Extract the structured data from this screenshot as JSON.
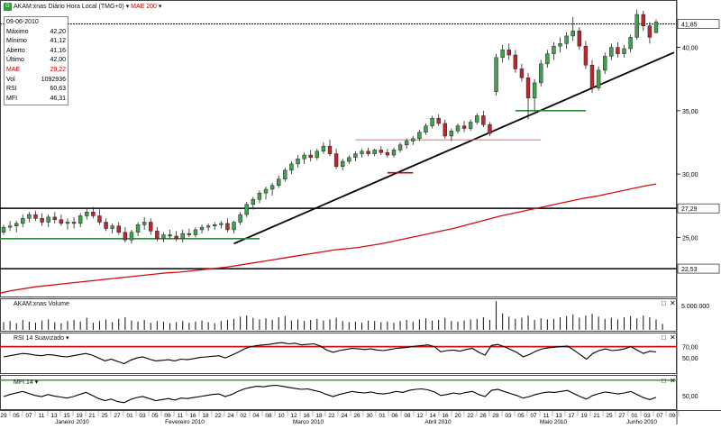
{
  "header": {
    "symbol_label": "AKAM:xnas Diário Hora Local (TMG+0)",
    "overlay_label": "MAE 200"
  },
  "info_box": {
    "date": "09-06-2010",
    "rows": [
      {
        "label": "Máximo",
        "value": "42,20"
      },
      {
        "label": "Mínimo",
        "value": "41,12"
      },
      {
        "label": "Aberto",
        "value": "41,16"
      },
      {
        "label": "Último",
        "value": "42,00"
      },
      {
        "label": "MAE",
        "value": "29,22"
      },
      {
        "label": "Vol",
        "value": "1092936"
      },
      {
        "label": "RSI",
        "value": "60,63"
      },
      {
        "label": "MFI",
        "value": "46,31"
      }
    ]
  },
  "panels": {
    "volume_label": "AKAM:xnas Volume",
    "rsi_label": "RSI 14 Suavizado",
    "mfi_label": "MFI 14"
  },
  "colors": {
    "up": "#3fa34d",
    "down": "#c0252b",
    "ma": "#d01010",
    "rsi_line": "#d01010",
    "mfi_line": "#2e8b3d"
  },
  "chart_data": {
    "type": "candlestick",
    "price_ticks": [
      "40,00",
      "35,00",
      "30,00",
      "25,00"
    ],
    "price_ylim": [
      20.4,
      43.6
    ],
    "horizontal_levels": [
      {
        "label": "41,85",
        "value": 41.85
      },
      {
        "label": "27,29",
        "value": 27.29
      },
      {
        "label": "22,53",
        "value": 22.53
      }
    ],
    "volume_tick": "5.000.000",
    "rsi_ticks": [
      "70,00",
      "50,00"
    ],
    "rsi_level": 70,
    "mfi_ticks": [
      "50,00"
    ],
    "mfi_level": 80,
    "x_day_labels": [
      "29",
      "05",
      "07",
      "11",
      "13",
      "15",
      "19",
      "21",
      "25",
      "27",
      "01",
      "03",
      "05",
      "09",
      "11",
      "16",
      "18",
      "22",
      "24",
      "02",
      "04",
      "08",
      "10",
      "12",
      "16",
      "18",
      "22",
      "24",
      "26",
      "30",
      "01",
      "06",
      "08",
      "12",
      "14",
      "16",
      "20",
      "22",
      "26",
      "28",
      "03",
      "05",
      "07",
      "11",
      "13",
      "17",
      "19",
      "21",
      "25",
      "27",
      "01",
      "03",
      "07",
      "09"
    ],
    "x_month_labels": [
      "Janeiro 2010",
      "Fevereiro 2010",
      "Março 2010",
      "Abril 2010",
      "Maio 2010",
      "Junho 2010"
    ],
    "candles": [
      {
        "o": 25.4,
        "h": 26.0,
        "l": 25.2,
        "c": 25.8
      },
      {
        "o": 25.8,
        "h": 26.3,
        "l": 25.5,
        "c": 25.9
      },
      {
        "o": 25.9,
        "h": 26.3,
        "l": 25.4,
        "c": 26.1
      },
      {
        "o": 26.1,
        "h": 26.8,
        "l": 25.8,
        "c": 26.5
      },
      {
        "o": 26.5,
        "h": 27.0,
        "l": 26.2,
        "c": 26.8
      },
      {
        "o": 26.8,
        "h": 27.1,
        "l": 26.3,
        "c": 26.5
      },
      {
        "o": 26.5,
        "h": 26.9,
        "l": 25.9,
        "c": 26.2
      },
      {
        "o": 26.2,
        "h": 26.8,
        "l": 25.8,
        "c": 26.6
      },
      {
        "o": 26.6,
        "h": 27.0,
        "l": 26.1,
        "c": 26.4
      },
      {
        "o": 26.4,
        "h": 26.8,
        "l": 25.9,
        "c": 26.1
      },
      {
        "o": 26.1,
        "h": 26.5,
        "l": 25.6,
        "c": 26.2
      },
      {
        "o": 26.2,
        "h": 26.6,
        "l": 25.7,
        "c": 26.1
      },
      {
        "o": 26.1,
        "h": 26.9,
        "l": 25.8,
        "c": 26.7
      },
      {
        "o": 26.7,
        "h": 27.3,
        "l": 26.4,
        "c": 27.0
      },
      {
        "o": 27.0,
        "h": 27.4,
        "l": 26.5,
        "c": 26.7
      },
      {
        "o": 26.7,
        "h": 27.2,
        "l": 26.0,
        "c": 26.2
      },
      {
        "o": 26.2,
        "h": 26.5,
        "l": 25.5,
        "c": 25.7
      },
      {
        "o": 25.7,
        "h": 26.1,
        "l": 25.3,
        "c": 25.9
      },
      {
        "o": 25.9,
        "h": 26.2,
        "l": 25.2,
        "c": 25.4
      },
      {
        "o": 25.4,
        "h": 25.8,
        "l": 24.6,
        "c": 24.8
      },
      {
        "o": 24.8,
        "h": 25.6,
        "l": 24.5,
        "c": 25.4
      },
      {
        "o": 25.4,
        "h": 26.2,
        "l": 25.1,
        "c": 26.0
      },
      {
        "o": 26.0,
        "h": 26.6,
        "l": 25.6,
        "c": 26.2
      },
      {
        "o": 26.2,
        "h": 26.5,
        "l": 25.2,
        "c": 25.5
      },
      {
        "o": 25.5,
        "h": 25.8,
        "l": 24.7,
        "c": 24.9
      },
      {
        "o": 24.9,
        "h": 25.4,
        "l": 24.6,
        "c": 25.2
      },
      {
        "o": 25.2,
        "h": 25.6,
        "l": 24.9,
        "c": 25.1
      },
      {
        "o": 25.1,
        "h": 25.5,
        "l": 24.7,
        "c": 24.9
      },
      {
        "o": 24.9,
        "h": 25.6,
        "l": 24.6,
        "c": 25.3
      },
      {
        "o": 25.3,
        "h": 25.7,
        "l": 25.0,
        "c": 25.2
      },
      {
        "o": 25.2,
        "h": 25.8,
        "l": 25.0,
        "c": 25.6
      },
      {
        "o": 25.6,
        "h": 26.0,
        "l": 25.3,
        "c": 25.8
      },
      {
        "o": 25.8,
        "h": 26.1,
        "l": 25.5,
        "c": 25.9
      },
      {
        "o": 25.9,
        "h": 26.2,
        "l": 25.6,
        "c": 26.0
      },
      {
        "o": 26.0,
        "h": 26.3,
        "l": 25.7,
        "c": 26.1
      },
      {
        "o": 26.1,
        "h": 26.5,
        "l": 25.4,
        "c": 25.6
      },
      {
        "o": 25.6,
        "h": 26.3,
        "l": 25.3,
        "c": 26.2
      },
      {
        "o": 26.2,
        "h": 27.0,
        "l": 26.0,
        "c": 26.8
      },
      {
        "o": 26.8,
        "h": 27.8,
        "l": 26.6,
        "c": 27.6
      },
      {
        "o": 27.6,
        "h": 28.2,
        "l": 27.2,
        "c": 28.0
      },
      {
        "o": 28.0,
        "h": 28.7,
        "l": 27.7,
        "c": 28.5
      },
      {
        "o": 28.5,
        "h": 29.0,
        "l": 28.0,
        "c": 28.8
      },
      {
        "o": 28.8,
        "h": 29.3,
        "l": 28.3,
        "c": 29.1
      },
      {
        "o": 29.1,
        "h": 29.9,
        "l": 28.9,
        "c": 29.6
      },
      {
        "o": 29.6,
        "h": 30.5,
        "l": 29.4,
        "c": 30.3
      },
      {
        "o": 30.3,
        "h": 31.0,
        "l": 30.0,
        "c": 30.8
      },
      {
        "o": 30.8,
        "h": 31.5,
        "l": 30.5,
        "c": 31.2
      },
      {
        "o": 31.2,
        "h": 31.7,
        "l": 30.8,
        "c": 31.5
      },
      {
        "o": 31.5,
        "h": 31.9,
        "l": 31.0,
        "c": 31.3
      },
      {
        "o": 31.3,
        "h": 32.0,
        "l": 31.1,
        "c": 31.8
      },
      {
        "o": 31.8,
        "h": 32.5,
        "l": 31.6,
        "c": 32.2
      },
      {
        "o": 32.2,
        "h": 32.7,
        "l": 31.4,
        "c": 31.6
      },
      {
        "o": 31.6,
        "h": 32.0,
        "l": 30.4,
        "c": 30.6
      },
      {
        "o": 30.6,
        "h": 31.2,
        "l": 30.3,
        "c": 31.0
      },
      {
        "o": 31.0,
        "h": 31.5,
        "l": 30.8,
        "c": 31.3
      },
      {
        "o": 31.3,
        "h": 31.8,
        "l": 31.0,
        "c": 31.6
      },
      {
        "o": 31.6,
        "h": 32.0,
        "l": 31.3,
        "c": 31.8
      },
      {
        "o": 31.8,
        "h": 32.1,
        "l": 31.4,
        "c": 31.6
      },
      {
        "o": 31.6,
        "h": 32.0,
        "l": 31.4,
        "c": 31.9
      },
      {
        "o": 31.9,
        "h": 32.2,
        "l": 31.5,
        "c": 31.7
      },
      {
        "o": 31.7,
        "h": 32.0,
        "l": 31.3,
        "c": 31.5
      },
      {
        "o": 31.5,
        "h": 32.1,
        "l": 31.3,
        "c": 31.9
      },
      {
        "o": 31.9,
        "h": 32.5,
        "l": 31.7,
        "c": 32.3
      },
      {
        "o": 32.3,
        "h": 32.8,
        "l": 32.0,
        "c": 32.6
      },
      {
        "o": 32.6,
        "h": 33.0,
        "l": 32.3,
        "c": 32.8
      },
      {
        "o": 32.8,
        "h": 33.5,
        "l": 32.6,
        "c": 33.3
      },
      {
        "o": 33.3,
        "h": 34.0,
        "l": 33.1,
        "c": 33.8
      },
      {
        "o": 33.8,
        "h": 34.6,
        "l": 33.6,
        "c": 34.4
      },
      {
        "o": 34.4,
        "h": 34.7,
        "l": 33.8,
        "c": 34.0
      },
      {
        "o": 34.0,
        "h": 34.3,
        "l": 32.8,
        "c": 33.0
      },
      {
        "o": 33.0,
        "h": 33.6,
        "l": 32.6,
        "c": 33.4
      },
      {
        "o": 33.4,
        "h": 34.0,
        "l": 33.2,
        "c": 33.8
      },
      {
        "o": 33.8,
        "h": 34.2,
        "l": 33.3,
        "c": 33.6
      },
      {
        "o": 33.6,
        "h": 34.3,
        "l": 33.4,
        "c": 34.1
      },
      {
        "o": 34.1,
        "h": 34.8,
        "l": 33.9,
        "c": 34.6
      },
      {
        "o": 34.6,
        "h": 35.0,
        "l": 33.7,
        "c": 33.9
      },
      {
        "o": 33.9,
        "h": 34.1,
        "l": 33.0,
        "c": 33.2
      },
      {
        "o": 36.5,
        "h": 39.5,
        "l": 36.2,
        "c": 39.2
      },
      {
        "o": 39.2,
        "h": 40.2,
        "l": 38.8,
        "c": 39.8
      },
      {
        "o": 39.8,
        "h": 40.3,
        "l": 39.0,
        "c": 39.4
      },
      {
        "o": 39.4,
        "h": 39.8,
        "l": 38.0,
        "c": 38.3
      },
      {
        "o": 38.3,
        "h": 38.7,
        "l": 37.3,
        "c": 37.6
      },
      {
        "o": 37.6,
        "h": 38.0,
        "l": 34.3,
        "c": 36.0
      },
      {
        "o": 36.0,
        "h": 37.5,
        "l": 35.0,
        "c": 37.2
      },
      {
        "o": 37.2,
        "h": 39.0,
        "l": 36.9,
        "c": 38.7
      },
      {
        "o": 38.7,
        "h": 39.8,
        "l": 38.4,
        "c": 39.5
      },
      {
        "o": 39.5,
        "h": 40.4,
        "l": 39.0,
        "c": 40.1
      },
      {
        "o": 40.1,
        "h": 40.8,
        "l": 39.6,
        "c": 40.3
      },
      {
        "o": 40.3,
        "h": 41.2,
        "l": 39.9,
        "c": 40.9
      },
      {
        "o": 40.9,
        "h": 42.4,
        "l": 40.5,
        "c": 41.3
      },
      {
        "o": 41.3,
        "h": 41.6,
        "l": 39.8,
        "c": 40.1
      },
      {
        "o": 40.1,
        "h": 40.5,
        "l": 38.3,
        "c": 38.6
      },
      {
        "o": 38.6,
        "h": 39.0,
        "l": 36.4,
        "c": 36.8
      },
      {
        "o": 36.8,
        "h": 38.5,
        "l": 36.6,
        "c": 38.2
      },
      {
        "o": 38.2,
        "h": 39.6,
        "l": 37.9,
        "c": 39.3
      },
      {
        "o": 39.3,
        "h": 40.3,
        "l": 39.0,
        "c": 40.0
      },
      {
        "o": 40.0,
        "h": 40.4,
        "l": 39.2,
        "c": 39.5
      },
      {
        "o": 39.5,
        "h": 40.2,
        "l": 39.2,
        "c": 39.9
      },
      {
        "o": 39.9,
        "h": 41.0,
        "l": 39.6,
        "c": 40.8
      },
      {
        "o": 40.8,
        "h": 43.0,
        "l": 40.6,
        "c": 42.6
      },
      {
        "o": 42.6,
        "h": 42.9,
        "l": 41.3,
        "c": 41.7
      },
      {
        "o": 41.7,
        "h": 42.0,
        "l": 40.3,
        "c": 40.8
      },
      {
        "o": 41.16,
        "h": 42.2,
        "l": 41.12,
        "c": 42.0
      }
    ],
    "ma200": [
      20.6,
      20.8,
      20.95,
      21.1,
      21.2,
      21.3,
      21.4,
      21.5,
      21.6,
      21.7,
      21.8,
      21.9,
      22.0,
      22.1,
      22.2,
      22.25,
      22.35,
      22.45,
      22.55,
      22.65,
      22.8,
      22.95,
      23.1,
      23.25,
      23.4,
      23.55,
      23.7,
      23.85,
      24.0,
      24.1,
      24.2,
      24.35,
      24.5,
      24.7,
      24.9,
      25.1,
      25.3,
      25.5,
      25.7,
      25.95,
      26.2,
      26.45,
      26.7,
      26.9,
      27.1,
      27.3,
      27.5,
      27.7,
      27.9,
      28.1,
      28.25,
      28.45,
      28.65,
      28.85,
      29.05,
      29.22
    ],
    "volume": [
      1.4,
      1.6,
      1.2,
      1.8,
      1.5,
      1.3,
      1.7,
      1.9,
      1.4,
      1.2,
      1.6,
      1.8,
      1.5,
      2.2,
      1.3,
      1.6,
      1.9,
      1.4,
      2.0,
      2.3,
      1.7,
      1.5,
      1.8,
      1.3,
      1.6,
      1.5,
      1.2,
      1.4,
      1.6,
      1.3,
      1.5,
      1.7,
      1.4,
      1.2,
      1.6,
      1.8,
      2.0,
      2.4,
      2.6,
      2.2,
      1.9,
      2.1,
      1.8,
      2.3,
      2.5,
      1.7,
      1.9,
      1.6,
      1.8,
      2.0,
      1.7,
      1.9,
      2.2,
      1.6,
      1.4,
      1.5,
      1.3,
      1.7,
      1.6,
      1.4,
      1.5,
      1.3,
      1.6,
      1.8,
      1.5,
      1.9,
      2.1,
      1.7,
      1.8,
      2.2,
      1.6,
      1.5,
      1.7,
      1.9,
      2.0,
      2.3,
      1.8,
      5.2,
      3.0,
      2.4,
      2.0,
      2.2,
      2.6,
      1.8,
      2.1,
      1.9,
      2.0,
      2.3,
      2.5,
      2.8,
      2.2,
      2.6,
      2.9,
      2.4,
      2.0,
      2.2,
      1.9,
      2.3,
      2.5,
      2.1,
      2.6,
      2.3,
      1.9,
      1.1
    ],
    "rsi": [
      52,
      54,
      56,
      58,
      57,
      55,
      54,
      56,
      55,
      53,
      52,
      54,
      56,
      58,
      55,
      50,
      45,
      48,
      44,
      40,
      46,
      50,
      52,
      48,
      45,
      46,
      47,
      45,
      48,
      47,
      49,
      51,
      52,
      53,
      54,
      50,
      55,
      60,
      66,
      70,
      72,
      73,
      74,
      76,
      77,
      75,
      76,
      73,
      74,
      75,
      71,
      64,
      60,
      63,
      65,
      67,
      66,
      65,
      66,
      64,
      63,
      65,
      67,
      68,
      69,
      71,
      72,
      73,
      70,
      61,
      63,
      64,
      62,
      65,
      67,
      60,
      55,
      72,
      74,
      70,
      65,
      60,
      52,
      56,
      62,
      66,
      68,
      69,
      70,
      71,
      64,
      56,
      48,
      58,
      63,
      66,
      63,
      64,
      66,
      70,
      64,
      58,
      62,
      60.6
    ],
    "mfi": [
      48,
      52,
      55,
      58,
      54,
      50,
      48,
      52,
      49,
      47,
      45,
      48,
      52,
      56,
      50,
      44,
      40,
      43,
      38,
      36,
      42,
      46,
      48,
      44,
      40,
      42,
      44,
      41,
      45,
      44,
      46,
      48,
      50,
      52,
      53,
      48,
      52,
      58,
      63,
      66,
      68,
      67,
      69,
      70,
      68,
      66,
      64,
      62,
      63,
      60,
      57,
      52,
      48,
      52,
      55,
      58,
      56,
      55,
      57,
      54,
      53,
      55,
      58,
      56,
      60,
      62,
      63,
      61,
      57,
      50,
      52,
      55,
      53,
      56,
      58,
      52,
      48,
      60,
      62,
      58,
      54,
      50,
      45,
      48,
      52,
      55,
      57,
      56,
      58,
      60,
      54,
      48,
      43,
      50,
      54,
      57,
      55,
      53,
      55,
      58,
      52,
      46,
      42,
      46.3
    ]
  }
}
